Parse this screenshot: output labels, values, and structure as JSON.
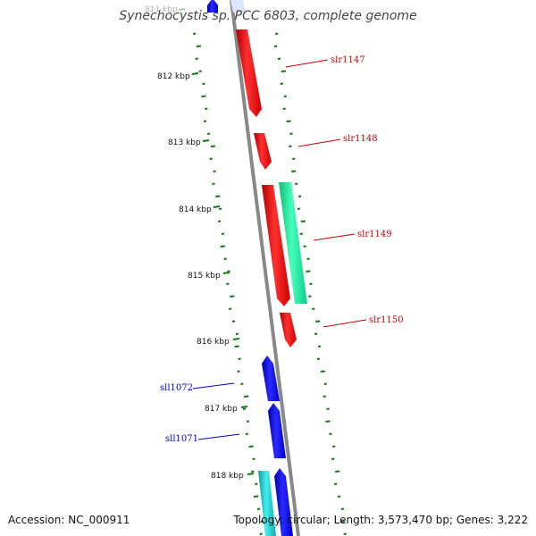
{
  "title": "Synechocystis sp. PCC 6803, complete genome",
  "footer": {
    "accession": "Accession: NC_000911",
    "topology": "Topology: circular; Length: 3,573,470 bp; Genes: 3,222"
  },
  "scale_labels": [
    "811 kbp",
    "812 kbp",
    "813 kbp",
    "814 kbp",
    "815 kbp",
    "816 kbp",
    "817 kbp",
    "818 kbp"
  ],
  "genes": [
    {
      "name": "slr1147",
      "strand": "forward",
      "color": "#ff0000"
    },
    {
      "name": "slr1148",
      "strand": "forward",
      "color": "#ff0000"
    },
    {
      "name": "slr1149",
      "strand": "forward",
      "color": "#ff0000"
    },
    {
      "name": "slr1150",
      "strand": "forward",
      "color": "#ff0000"
    },
    {
      "name": "sll1072",
      "strand": "reverse",
      "color": "#0000ee"
    },
    {
      "name": "sll1071",
      "strand": "reverse",
      "color": "#0000ee"
    }
  ],
  "colors": {
    "backbone": "#888888",
    "forward_gene": "#ff0000",
    "reverse_gene": "#0000ee",
    "feature_green": "#22ee99",
    "feature_cyan": "#22cccc",
    "gc_track": "#117711"
  }
}
